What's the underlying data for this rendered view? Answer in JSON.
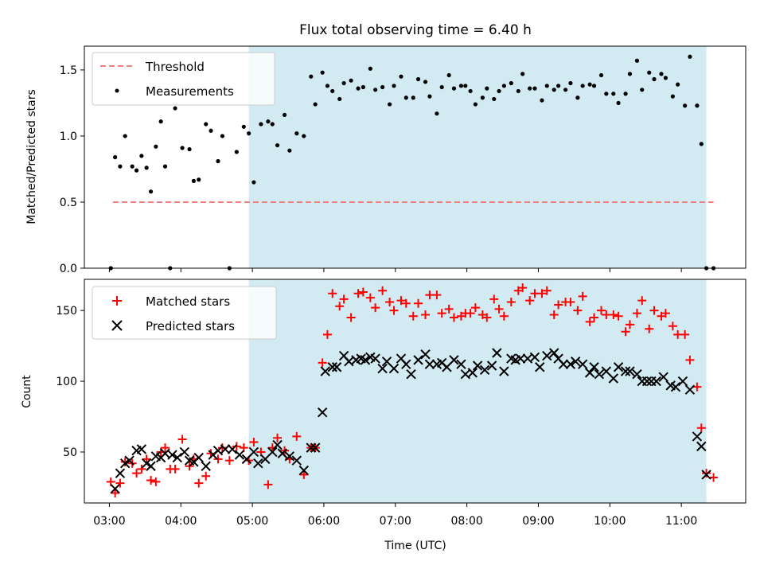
{
  "figure": {
    "title": "Flux total observing time = 6.40 h"
  },
  "colors": {
    "shade": "#add8e6",
    "threshold": "#f08080",
    "matched": "#ff0000",
    "predicted": "#000000",
    "measure": "#000000"
  },
  "chart_data": [
    {
      "type": "scatter",
      "ylabel": "Matched/Predicted stars",
      "ylim": [
        0,
        1.68
      ],
      "yticks": [
        "0.0",
        "0.5",
        "1.0",
        "1.5"
      ],
      "ytick_values": [
        0,
        0.5,
        1.0,
        1.5
      ],
      "xlim": [
        2.65,
        11.9
      ],
      "shaded_span": [
        4.95,
        11.35
      ],
      "legend": {
        "placement": "upper-left",
        "entries": [
          {
            "key": "threshold",
            "label": "Threshold"
          },
          {
            "key": "measurements",
            "label": "Measurements"
          }
        ]
      },
      "threshold": {
        "name": "Threshold",
        "y": 0.5,
        "x": [
          3.05,
          11.45
        ]
      },
      "series": [
        {
          "name": "Measurements",
          "x": [
            3.02,
            3.08,
            3.15,
            3.22,
            3.32,
            3.38,
            3.45,
            3.52,
            3.58,
            3.65,
            3.72,
            3.78,
            3.85,
            3.92,
            4.02,
            4.12,
            4.18,
            4.25,
            4.35,
            4.42,
            4.52,
            4.58,
            4.68,
            4.78,
            4.88,
            4.95,
            5.02,
            5.12,
            5.22,
            5.28,
            5.35,
            5.45,
            5.52,
            5.62,
            5.72,
            5.82,
            5.88,
            5.98,
            6.05,
            6.12,
            6.22,
            6.28,
            6.38,
            6.48,
            6.55,
            6.65,
            6.72,
            6.82,
            6.92,
            6.98,
            7.08,
            7.15,
            7.25,
            7.32,
            7.42,
            7.48,
            7.58,
            7.65,
            7.75,
            7.82,
            7.92,
            7.98,
            8.05,
            8.12,
            8.22,
            8.28,
            8.38,
            8.45,
            8.52,
            8.62,
            8.72,
            8.78,
            8.88,
            8.95,
            9.05,
            9.12,
            9.22,
            9.28,
            9.38,
            9.45,
            9.55,
            9.62,
            9.72,
            9.78,
            9.88,
            9.95,
            10.05,
            10.12,
            10.22,
            10.28,
            10.38,
            10.45,
            10.55,
            10.62,
            10.72,
            10.78,
            10.88,
            10.95,
            11.05,
            11.12,
            11.22,
            11.28,
            11.35,
            11.45
          ],
          "y": [
            0.0,
            0.84,
            0.77,
            1.0,
            0.77,
            0.74,
            0.85,
            0.76,
            0.58,
            0.92,
            1.11,
            0.77,
            0.0,
            1.21,
            0.91,
            0.9,
            0.66,
            0.67,
            1.09,
            1.04,
            0.81,
            1.0,
            0.0,
            0.88,
            1.07,
            1.02,
            0.65,
            1.09,
            1.11,
            1.09,
            0.93,
            1.16,
            0.89,
            1.02,
            1.0,
            1.45,
            1.24,
            1.48,
            1.38,
            1.34,
            1.28,
            1.4,
            1.42,
            1.36,
            1.37,
            1.51,
            1.35,
            1.37,
            1.24,
            1.38,
            1.45,
            1.29,
            1.29,
            1.43,
            1.41,
            1.3,
            1.17,
            1.37,
            1.46,
            1.36,
            1.38,
            1.38,
            1.34,
            1.24,
            1.29,
            1.36,
            1.28,
            1.34,
            1.38,
            1.4,
            1.34,
            1.47,
            1.36,
            1.36,
            1.27,
            1.38,
            1.35,
            1.38,
            1.35,
            1.4,
            1.29,
            1.38,
            1.39,
            1.38,
            1.46,
            1.32,
            1.32,
            1.25,
            1.32,
            1.47,
            1.57,
            1.35,
            1.48,
            1.43,
            1.47,
            1.44,
            1.3,
            1.39,
            1.23,
            1.6,
            1.23,
            0.94,
            0.0,
            0.0
          ]
        }
      ]
    },
    {
      "type": "scatter",
      "ylabel": "Count",
      "xlabel": "Time (UTC)",
      "ylim": [
        14,
        172
      ],
      "yticks": [
        "50",
        "100",
        "150"
      ],
      "ytick_values": [
        50,
        100,
        150
      ],
      "xlim": [
        2.65,
        11.9
      ],
      "xticks": [
        "03:00",
        "04:00",
        "05:00",
        "06:00",
        "07:00",
        "08:00",
        "09:00",
        "10:00",
        "11:00"
      ],
      "xtick_values": [
        3,
        4,
        5,
        6,
        7,
        8,
        9,
        10,
        11
      ],
      "shaded_span": [
        4.95,
        11.35
      ],
      "legend": {
        "placement": "upper-left",
        "entries": [
          {
            "key": "matched",
            "label": "Matched stars"
          },
          {
            "key": "predicted",
            "label": "Predicted stars"
          }
        ]
      },
      "series": [
        {
          "name": "Matched stars",
          "x": [
            3.02,
            3.08,
            3.15,
            3.22,
            3.32,
            3.38,
            3.45,
            3.52,
            3.58,
            3.65,
            3.72,
            3.78,
            3.85,
            3.92,
            4.02,
            4.12,
            4.18,
            4.25,
            4.35,
            4.42,
            4.52,
            4.58,
            4.68,
            4.78,
            4.88,
            4.95,
            5.02,
            5.12,
            5.22,
            5.28,
            5.35,
            5.45,
            5.52,
            5.62,
            5.72,
            5.82,
            5.88,
            5.98,
            6.05,
            6.12,
            6.22,
            6.28,
            6.38,
            6.48,
            6.55,
            6.65,
            6.72,
            6.82,
            6.92,
            6.98,
            7.08,
            7.15,
            7.25,
            7.32,
            7.42,
            7.48,
            7.58,
            7.65,
            7.75,
            7.82,
            7.92,
            7.98,
            8.05,
            8.12,
            8.22,
            8.28,
            8.38,
            8.45,
            8.52,
            8.62,
            8.72,
            8.78,
            8.88,
            8.95,
            9.05,
            9.12,
            9.22,
            9.28,
            9.38,
            9.45,
            9.55,
            9.62,
            9.72,
            9.78,
            9.88,
            9.95,
            10.05,
            10.12,
            10.22,
            10.28,
            10.38,
            10.45,
            10.55,
            10.62,
            10.72,
            10.78,
            10.88,
            10.95,
            11.05,
            11.12,
            11.22,
            11.28,
            11.35,
            11.45
          ],
          "y": [
            29,
            21,
            28,
            43,
            42,
            35,
            38,
            45,
            30,
            29,
            50,
            53,
            38,
            38,
            59,
            40,
            45,
            28,
            33,
            49,
            45,
            53,
            44,
            54,
            53,
            44,
            57,
            50,
            27,
            53,
            60,
            51,
            45,
            61,
            34,
            53,
            53,
            113,
            133,
            162,
            153,
            158,
            145,
            162,
            163,
            159,
            152,
            164,
            156,
            150,
            157,
            155,
            146,
            155,
            147,
            161,
            161,
            148,
            151,
            145,
            146,
            148,
            148,
            152,
            147,
            145,
            158,
            151,
            146,
            156,
            164,
            166,
            157,
            162,
            162,
            164,
            147,
            154,
            156,
            156,
            150,
            160,
            142,
            145,
            150,
            147,
            147,
            146,
            135,
            140,
            148,
            157,
            137,
            150,
            146,
            148,
            139,
            133,
            133,
            115,
            96,
            67,
            35,
            32
          ]
        },
        {
          "name": "Predicted stars",
          "x": [
            3.08,
            3.15,
            3.22,
            3.28,
            3.38,
            3.45,
            3.52,
            3.58,
            3.65,
            3.72,
            3.78,
            3.88,
            3.95,
            4.05,
            4.12,
            4.18,
            4.25,
            4.35,
            4.45,
            4.52,
            4.62,
            4.72,
            4.82,
            4.92,
            5.02,
            5.08,
            5.18,
            5.28,
            5.35,
            5.42,
            5.52,
            5.62,
            5.72,
            5.82,
            5.88,
            5.98,
            6.02,
            6.12,
            6.18,
            6.28,
            6.35,
            6.45,
            6.52,
            6.58,
            6.65,
            6.72,
            6.82,
            6.88,
            6.98,
            7.08,
            7.15,
            7.22,
            7.32,
            7.42,
            7.48,
            7.58,
            7.65,
            7.72,
            7.82,
            7.92,
            7.98,
            8.08,
            8.15,
            8.25,
            8.35,
            8.42,
            8.52,
            8.62,
            8.68,
            8.75,
            8.85,
            8.95,
            9.02,
            9.12,
            9.22,
            9.28,
            9.35,
            9.45,
            9.52,
            9.62,
            9.72,
            9.78,
            9.85,
            9.95,
            10.05,
            10.12,
            10.22,
            10.28,
            10.38,
            10.45,
            10.52,
            10.58,
            10.65,
            10.75,
            10.85,
            10.92,
            11.02,
            11.12,
            11.22,
            11.28,
            11.35
          ],
          "y": [
            24,
            35,
            42,
            44,
            51,
            52,
            42,
            40,
            47,
            46,
            49,
            48,
            46,
            50,
            44,
            43,
            46,
            40,
            48,
            51,
            52,
            52,
            48,
            45,
            50,
            42,
            45,
            50,
            55,
            49,
            47,
            44,
            37,
            53,
            53,
            78,
            107,
            110,
            110,
            118,
            114,
            115,
            116,
            115,
            117,
            116,
            109,
            114,
            109,
            116,
            112,
            105,
            115,
            119,
            112,
            112,
            113,
            110,
            115,
            112,
            105,
            106,
            111,
            108,
            111,
            120,
            107,
            116,
            115,
            116,
            116,
            117,
            110,
            118,
            120,
            116,
            112,
            112,
            114,
            112,
            106,
            110,
            105,
            107,
            102,
            110,
            107,
            107,
            105,
            100,
            100,
            100,
            100,
            103,
            97,
            96,
            100,
            94,
            61,
            54,
            34
          ]
        }
      ]
    }
  ]
}
